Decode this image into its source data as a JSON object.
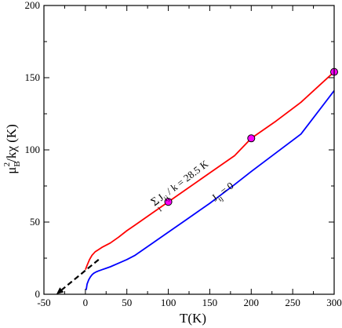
{
  "chart_data": {
    "type": "line",
    "xlabel": "T(K)",
    "ylabel": {
      "mu": "μ",
      "sub": "B",
      "sup": "2",
      "rest": "/kχ (K)"
    },
    "xlim": [
      -50,
      300
    ],
    "ylim": [
      0,
      200
    ],
    "x_ticks": [
      -50,
      0,
      50,
      100,
      150,
      200,
      250,
      300
    ],
    "y_ticks": [
      0,
      50,
      100,
      150,
      200
    ],
    "grid": false,
    "series": [
      {
        "color": "#ff0000",
        "x": [
          0,
          2,
          5,
          8,
          12,
          16,
          20,
          25,
          30,
          40,
          50,
          60,
          80,
          100,
          120,
          150,
          180,
          200,
          230,
          260,
          300
        ],
        "y": [
          17,
          20,
          24,
          27,
          29.5,
          31,
          32.5,
          34,
          35.5,
          39.5,
          44,
          48,
          56,
          64,
          72,
          84,
          96,
          108,
          120,
          133,
          154
        ]
      },
      {
        "color": "#0000ff",
        "x": [
          1,
          2,
          4,
          6,
          8,
          10,
          13,
          16,
          20,
          25,
          30,
          40,
          50,
          60,
          80,
          100,
          120,
          150,
          180,
          200,
          230,
          260,
          300
        ],
        "y": [
          3,
          7,
          10,
          12,
          13.5,
          14.5,
          15.5,
          16.2,
          17,
          18,
          19,
          21.5,
          24,
          27,
          35,
          43,
          51,
          63,
          76,
          85,
          98,
          111,
          141
        ]
      }
    ],
    "markers": {
      "color": "#ff00ff",
      "points": [
        {
          "x": 100,
          "y": 64
        },
        {
          "x": 200,
          "y": 108
        },
        {
          "x": 300,
          "y": 154
        }
      ]
    },
    "arrow": {
      "from": {
        "x": 16,
        "y": 24
      },
      "to": {
        "x": -35,
        "y": 0
      },
      "style": "dashed"
    },
    "annotations": {
      "red": {
        "sigma": "Σ",
        "sigma_sub": "i",
        "j": "J",
        "j_sub": "ij",
        "rest": " / k = 28.5 K"
      },
      "blue": {
        "j": "J",
        "j_sub": "ij",
        "rest": " = 0"
      }
    }
  }
}
